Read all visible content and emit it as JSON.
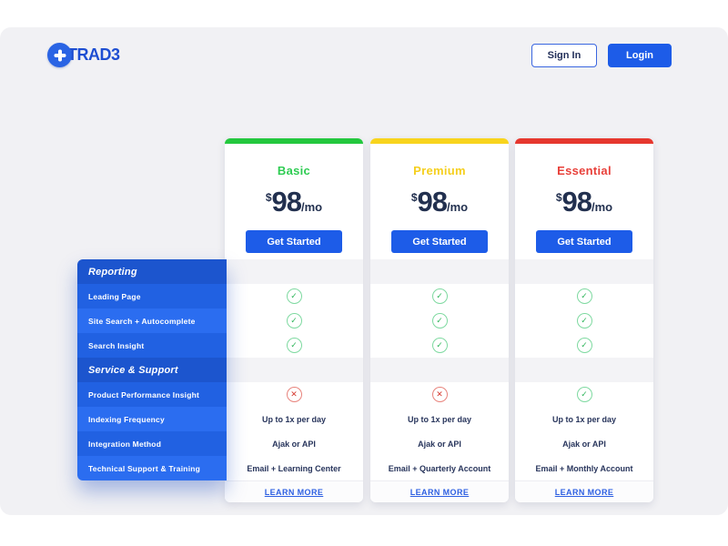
{
  "brand": {
    "name": "TRAD3",
    "logo_icon": "plus-icon",
    "brand_blue": "#1e4ed2"
  },
  "header": {
    "sign_in_label": "Sign In",
    "login_label": "Login",
    "accent_blue": "#1d5ce8"
  },
  "icons": {
    "check": "✓",
    "cross": "✕"
  },
  "sidebar": {
    "rows": [
      {
        "label": "Reporting",
        "type": "header"
      },
      {
        "label": "Leading Page",
        "type": "item",
        "shade": "a"
      },
      {
        "label": "Site Search + Autocomplete",
        "type": "item",
        "shade": "b"
      },
      {
        "label": "Search Insight",
        "type": "item",
        "shade": "a"
      },
      {
        "label": "Service & Support",
        "type": "header"
      },
      {
        "label": "Product Performance Insight",
        "type": "item",
        "shade": "a"
      },
      {
        "label": "Indexing Frequency",
        "type": "item",
        "shade": "b"
      },
      {
        "label": "Integration Method",
        "type": "item",
        "shade": "a"
      },
      {
        "label": "Technical Support & Training",
        "type": "item",
        "shade": "b"
      }
    ]
  },
  "plans": [
    {
      "name": "Basic",
      "accent_color": "#24c83e",
      "name_color": "#2ecc52",
      "currency": "$",
      "amount": "98",
      "period": "/mo",
      "cta": "Get Started",
      "footer_link": "LEARN MORE",
      "rows": [
        {
          "kind": "section"
        },
        {
          "kind": "check"
        },
        {
          "kind": "check"
        },
        {
          "kind": "check"
        },
        {
          "kind": "section"
        },
        {
          "kind": "cross"
        },
        {
          "kind": "text",
          "value": "Up to 1x per day"
        },
        {
          "kind": "text",
          "value": "Ajak or API"
        },
        {
          "kind": "text",
          "value": "Email + Learning Center"
        }
      ]
    },
    {
      "name": "Premium",
      "accent_color": "#f8d41d",
      "name_color": "#f5cf1e",
      "currency": "$",
      "amount": "98",
      "period": "/mo",
      "cta": "Get Started",
      "footer_link": "LEARN MORE",
      "rows": [
        {
          "kind": "section"
        },
        {
          "kind": "check"
        },
        {
          "kind": "check"
        },
        {
          "kind": "check"
        },
        {
          "kind": "section"
        },
        {
          "kind": "cross"
        },
        {
          "kind": "text",
          "value": "Up to 1x per day"
        },
        {
          "kind": "text",
          "value": "Ajak or API"
        },
        {
          "kind": "text",
          "value": "Email + Quarterly Account"
        }
      ]
    },
    {
      "name": "Essential",
      "accent_color": "#e6382e",
      "name_color": "#e8403a",
      "currency": "$",
      "amount": "98",
      "period": "/mo",
      "cta": "Get Started",
      "footer_link": "LEARN MORE",
      "rows": [
        {
          "kind": "section"
        },
        {
          "kind": "check"
        },
        {
          "kind": "check"
        },
        {
          "kind": "check"
        },
        {
          "kind": "section"
        },
        {
          "kind": "check"
        },
        {
          "kind": "text",
          "value": "Up to 1x per day"
        },
        {
          "kind": "text",
          "value": "Ajak or API"
        },
        {
          "kind": "text",
          "value": "Email + Monthly Account"
        }
      ]
    }
  ]
}
